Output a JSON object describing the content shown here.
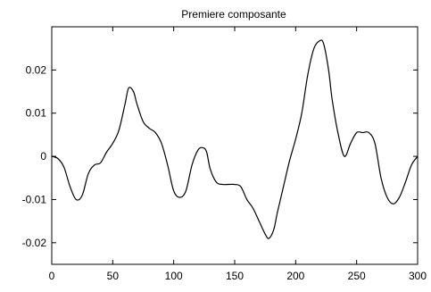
{
  "chart_data": {
    "type": "line",
    "title": "Premiere composante",
    "xlabel": "",
    "ylabel": "",
    "xlim": [
      0,
      300
    ],
    "ylim": [
      -0.025,
      0.03
    ],
    "grid": false,
    "x_ticks": [
      0,
      50,
      100,
      150,
      200,
      250,
      300
    ],
    "x_tick_labels": [
      "0",
      "50",
      "100",
      "150",
      "200",
      "250",
      "300"
    ],
    "y_ticks": [
      -0.02,
      -0.01,
      0,
      0.01,
      0.02
    ],
    "y_tick_labels": [
      "-0.02",
      "-0.01",
      "0",
      "0.01",
      "0.02"
    ],
    "series": [
      {
        "color": "#000000",
        "x": [
          0,
          5,
          10,
          15,
          20,
          25,
          30,
          35,
          40,
          45,
          50,
          55,
          60,
          63,
          67,
          70,
          75,
          80,
          85,
          90,
          95,
          100,
          105,
          110,
          115,
          120,
          124,
          127,
          130,
          135,
          140,
          145,
          150,
          155,
          160,
          165,
          170,
          175,
          178,
          182,
          185,
          190,
          195,
          200,
          205,
          210,
          215,
          220,
          223,
          227,
          230,
          235,
          240,
          245,
          250,
          255,
          260,
          265,
          270,
          275,
          280,
          285,
          290,
          295,
          300
        ],
        "y": [
          0.0,
          -0.0005,
          -0.0025,
          -0.007,
          -0.01,
          -0.009,
          -0.004,
          -0.002,
          -0.0015,
          0.001,
          0.003,
          0.006,
          0.012,
          0.0158,
          0.015,
          0.012,
          0.008,
          0.0065,
          0.0055,
          0.003,
          -0.002,
          -0.008,
          -0.0095,
          -0.008,
          -0.002,
          0.0015,
          0.002,
          0.001,
          -0.003,
          -0.006,
          -0.0065,
          -0.0065,
          -0.0065,
          -0.007,
          -0.01,
          -0.012,
          -0.015,
          -0.018,
          -0.019,
          -0.017,
          -0.013,
          -0.007,
          -0.001,
          0.004,
          0.01,
          0.019,
          0.025,
          0.0268,
          0.026,
          0.02,
          0.013,
          0.005,
          0.0,
          0.003,
          0.0055,
          0.0055,
          0.0055,
          0.003,
          -0.005,
          -0.0095,
          -0.011,
          -0.0095,
          -0.006,
          -0.002,
          0.0
        ]
      }
    ]
  }
}
